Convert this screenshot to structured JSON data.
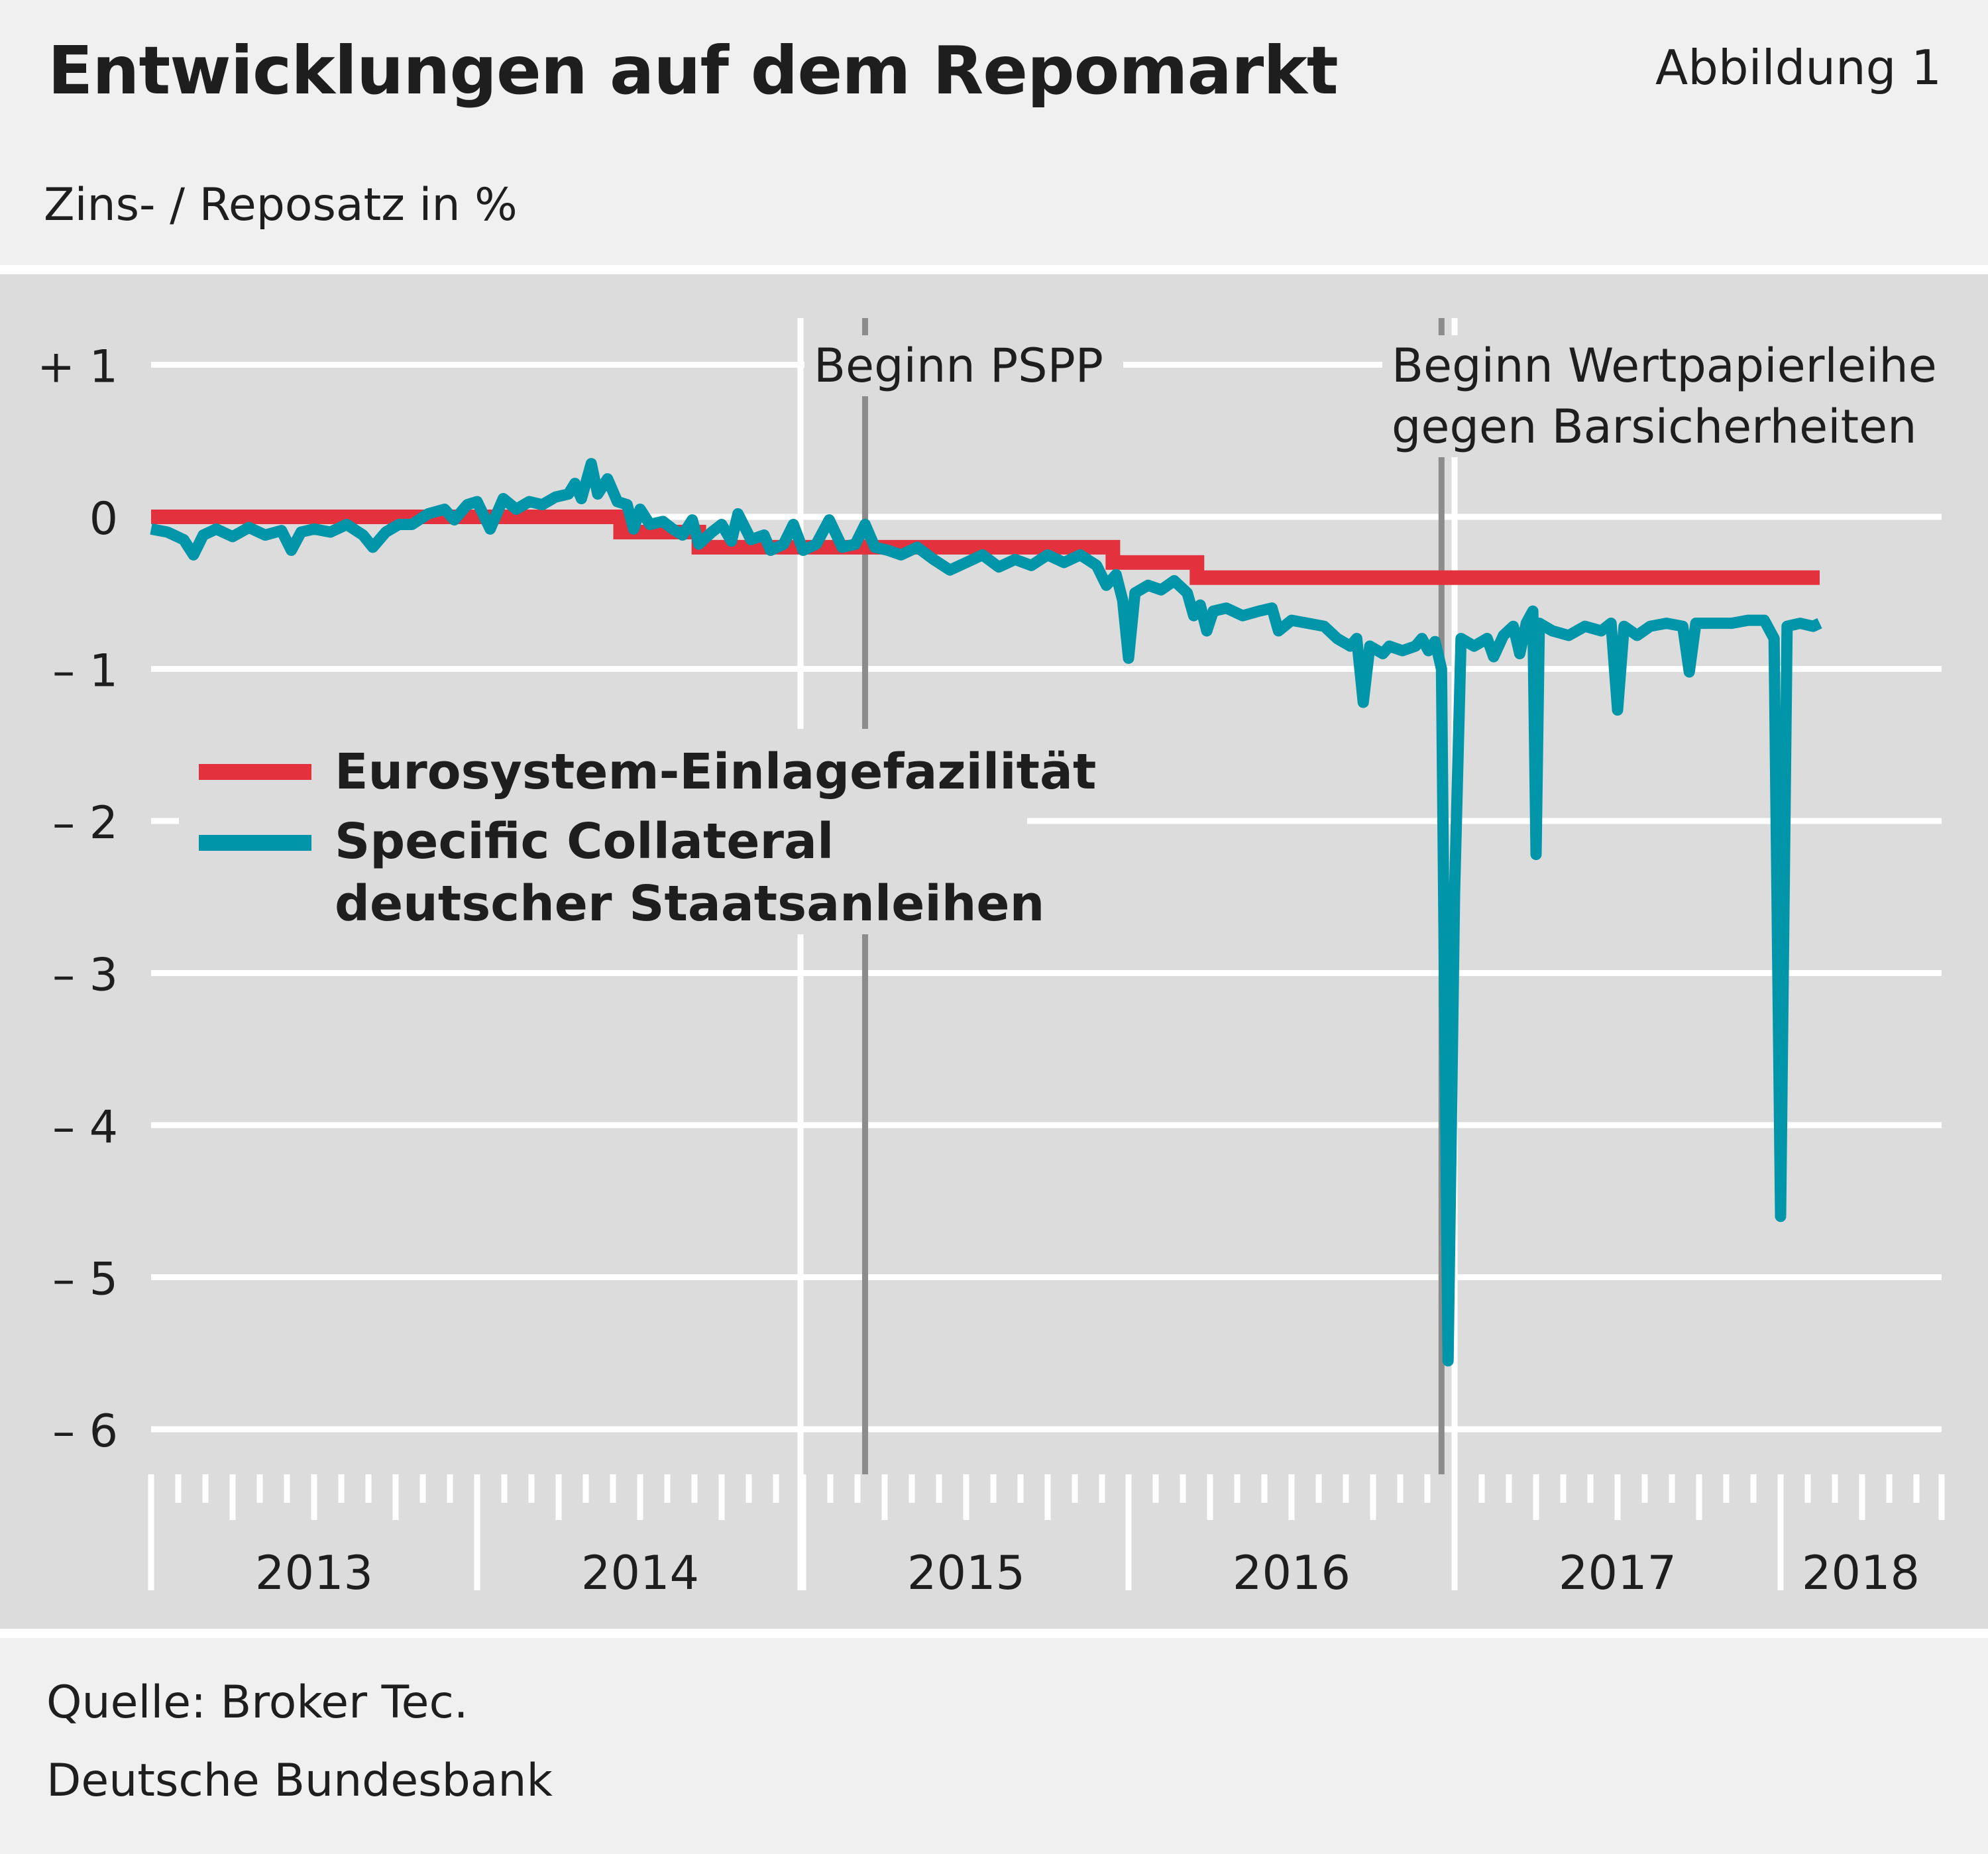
{
  "header": {
    "title": "Entwicklungen auf dem Repomarkt",
    "figure_label": "Abbildung 1",
    "unit_label": "Zins- / Reposatz in %"
  },
  "footer": {
    "source": "Quelle: Broker Tec.",
    "publisher": "Deutsche Bundesbank"
  },
  "colors": {
    "page_background": "#f0f0f0",
    "plot_background": "#dcdcdc",
    "gridline": "#ffffff",
    "deposit_facility": "#e3313d",
    "specific_collateral": "#0095a8",
    "event_marker": "#8c8c8c"
  },
  "chart_data": {
    "type": "line",
    "title": "Entwicklungen auf dem Repomarkt",
    "ylabel": "Zins- / Reposatz in %",
    "ylim": [
      -6.3,
      1.3
    ],
    "xlim": [
      2013.0,
      2018.6
    ],
    "grid": true,
    "legend_position": "center-left",
    "y_ticks": [
      {
        "value": 1,
        "label": "+ 1"
      },
      {
        "value": 0,
        "label": "0"
      },
      {
        "value": -1,
        "label": "– 1"
      },
      {
        "value": -2,
        "label": "– 2"
      },
      {
        "value": -3,
        "label": "– 3"
      },
      {
        "value": -4,
        "label": "– 4"
      },
      {
        "value": -5,
        "label": "– 5"
      },
      {
        "value": -6,
        "label": "– 6"
      }
    ],
    "x_years": [
      {
        "value": 2013,
        "label": "2013"
      },
      {
        "value": 2014,
        "label": "2014"
      },
      {
        "value": 2015,
        "label": "2015"
      },
      {
        "value": 2016,
        "label": "2016"
      },
      {
        "value": 2017,
        "label": "2017"
      },
      {
        "value": 2018,
        "label": "2018"
      }
    ],
    "annotations": [
      {
        "id": "pspp",
        "x": 2015.19,
        "label_lines": [
          "Beginn PSPP"
        ]
      },
      {
        "id": "securities-lending",
        "x": 2016.96,
        "label_lines": [
          "Beginn Wertpapierleihe",
          "gegen Barsicherheiten"
        ]
      }
    ],
    "series": [
      {
        "id": "deposit",
        "name": "Eurosystem-Einlagefazilität",
        "style": "step",
        "points": [
          [
            2013.0,
            0.0
          ],
          [
            2014.44,
            0.0
          ],
          [
            2014.44,
            -0.1
          ],
          [
            2014.68,
            -0.1
          ],
          [
            2014.68,
            -0.2
          ],
          [
            2015.95,
            -0.2
          ],
          [
            2015.95,
            -0.3
          ],
          [
            2016.21,
            -0.3
          ],
          [
            2016.21,
            -0.4
          ],
          [
            2018.12,
            -0.4
          ]
        ]
      },
      {
        "id": "specific",
        "name": "Specific Collateral deutscher Staatsanleihen",
        "lines": [
          "Specific Collateral",
          "deutscher Staatsanleihen"
        ],
        "style": "line",
        "points": [
          [
            2013.0,
            -0.08
          ],
          [
            2013.05,
            -0.1
          ],
          [
            2013.1,
            -0.15
          ],
          [
            2013.13,
            -0.25
          ],
          [
            2013.16,
            -0.12
          ],
          [
            2013.2,
            -0.08
          ],
          [
            2013.25,
            -0.13
          ],
          [
            2013.3,
            -0.07
          ],
          [
            2013.35,
            -0.12
          ],
          [
            2013.4,
            -0.09
          ],
          [
            2013.43,
            -0.22
          ],
          [
            2013.46,
            -0.1
          ],
          [
            2013.5,
            -0.08
          ],
          [
            2013.55,
            -0.1
          ],
          [
            2013.6,
            -0.05
          ],
          [
            2013.65,
            -0.12
          ],
          [
            2013.68,
            -0.2
          ],
          [
            2013.72,
            -0.1
          ],
          [
            2013.76,
            -0.05
          ],
          [
            2013.8,
            -0.05
          ],
          [
            2013.85,
            0.02
          ],
          [
            2013.9,
            0.05
          ],
          [
            2013.93,
            -0.02
          ],
          [
            2013.97,
            0.08
          ],
          [
            2014.0,
            0.1
          ],
          [
            2014.04,
            -0.08
          ],
          [
            2014.08,
            0.12
          ],
          [
            2014.12,
            0.05
          ],
          [
            2014.16,
            0.1
          ],
          [
            2014.2,
            0.08
          ],
          [
            2014.24,
            0.13
          ],
          [
            2014.28,
            0.15
          ],
          [
            2014.3,
            0.22
          ],
          [
            2014.32,
            0.12
          ],
          [
            2014.35,
            0.35
          ],
          [
            2014.37,
            0.15
          ],
          [
            2014.4,
            0.25
          ],
          [
            2014.43,
            0.1
          ],
          [
            2014.46,
            0.08
          ],
          [
            2014.48,
            -0.08
          ],
          [
            2014.5,
            0.05
          ],
          [
            2014.53,
            -0.05
          ],
          [
            2014.57,
            -0.03
          ],
          [
            2014.6,
            -0.08
          ],
          [
            2014.63,
            -0.12
          ],
          [
            2014.66,
            -0.02
          ],
          [
            2014.68,
            -0.18
          ],
          [
            2014.72,
            -0.1
          ],
          [
            2014.75,
            -0.05
          ],
          [
            2014.78,
            -0.16
          ],
          [
            2014.8,
            0.02
          ],
          [
            2014.84,
            -0.15
          ],
          [
            2014.88,
            -0.12
          ],
          [
            2014.9,
            -0.22
          ],
          [
            2014.94,
            -0.18
          ],
          [
            2014.97,
            -0.05
          ],
          [
            2015.0,
            -0.22
          ],
          [
            2015.04,
            -0.18
          ],
          [
            2015.08,
            -0.02
          ],
          [
            2015.12,
            -0.2
          ],
          [
            2015.16,
            -0.18
          ],
          [
            2015.19,
            -0.05
          ],
          [
            2015.22,
            -0.2
          ],
          [
            2015.26,
            -0.22
          ],
          [
            2015.3,
            -0.25
          ],
          [
            2015.35,
            -0.2
          ],
          [
            2015.4,
            -0.28
          ],
          [
            2015.45,
            -0.35
          ],
          [
            2015.5,
            -0.3
          ],
          [
            2015.55,
            -0.25
          ],
          [
            2015.6,
            -0.33
          ],
          [
            2015.65,
            -0.28
          ],
          [
            2015.7,
            -0.32
          ],
          [
            2015.75,
            -0.25
          ],
          [
            2015.8,
            -0.3
          ],
          [
            2015.85,
            -0.25
          ],
          [
            2015.9,
            -0.32
          ],
          [
            2015.93,
            -0.45
          ],
          [
            2015.96,
            -0.38
          ],
          [
            2015.98,
            -0.55
          ],
          [
            2016.0,
            -0.93
          ],
          [
            2016.02,
            -0.5
          ],
          [
            2016.06,
            -0.45
          ],
          [
            2016.1,
            -0.48
          ],
          [
            2016.14,
            -0.42
          ],
          [
            2016.18,
            -0.5
          ],
          [
            2016.2,
            -0.65
          ],
          [
            2016.22,
            -0.58
          ],
          [
            2016.24,
            -0.75
          ],
          [
            2016.26,
            -0.62
          ],
          [
            2016.3,
            -0.6
          ],
          [
            2016.35,
            -0.65
          ],
          [
            2016.4,
            -0.62
          ],
          [
            2016.44,
            -0.6
          ],
          [
            2016.46,
            -0.75
          ],
          [
            2016.5,
            -0.68
          ],
          [
            2016.55,
            -0.7
          ],
          [
            2016.6,
            -0.72
          ],
          [
            2016.64,
            -0.8
          ],
          [
            2016.68,
            -0.85
          ],
          [
            2016.7,
            -0.8
          ],
          [
            2016.72,
            -1.22
          ],
          [
            2016.74,
            -0.85
          ],
          [
            2016.78,
            -0.9
          ],
          [
            2016.8,
            -0.85
          ],
          [
            2016.84,
            -0.88
          ],
          [
            2016.88,
            -0.85
          ],
          [
            2016.9,
            -0.8
          ],
          [
            2016.92,
            -0.88
          ],
          [
            2016.94,
            -0.82
          ],
          [
            2016.96,
            -1.0
          ],
          [
            2016.98,
            -5.55
          ],
          [
            2017.0,
            -2.48
          ],
          [
            2017.02,
            -0.8
          ],
          [
            2017.06,
            -0.85
          ],
          [
            2017.1,
            -0.8
          ],
          [
            2017.12,
            -0.92
          ],
          [
            2017.15,
            -0.78
          ],
          [
            2017.18,
            -0.72
          ],
          [
            2017.2,
            -0.9
          ],
          [
            2017.22,
            -0.7
          ],
          [
            2017.24,
            -0.62
          ],
          [
            2017.25,
            -2.22
          ],
          [
            2017.26,
            -0.7
          ],
          [
            2017.3,
            -0.75
          ],
          [
            2017.35,
            -0.78
          ],
          [
            2017.4,
            -0.72
          ],
          [
            2017.45,
            -0.75
          ],
          [
            2017.48,
            -0.7
          ],
          [
            2017.5,
            -1.27
          ],
          [
            2017.52,
            -0.72
          ],
          [
            2017.56,
            -0.78
          ],
          [
            2017.6,
            -0.72
          ],
          [
            2017.65,
            -0.7
          ],
          [
            2017.7,
            -0.72
          ],
          [
            2017.72,
            -1.02
          ],
          [
            2017.74,
            -0.7
          ],
          [
            2017.8,
            -0.7
          ],
          [
            2017.85,
            -0.7
          ],
          [
            2017.9,
            -0.68
          ],
          [
            2017.95,
            -0.68
          ],
          [
            2017.98,
            -0.8
          ],
          [
            2018.0,
            -4.6
          ],
          [
            2018.02,
            -0.72
          ],
          [
            2018.06,
            -0.7
          ],
          [
            2018.1,
            -0.72
          ],
          [
            2018.12,
            -0.7
          ]
        ]
      }
    ]
  }
}
